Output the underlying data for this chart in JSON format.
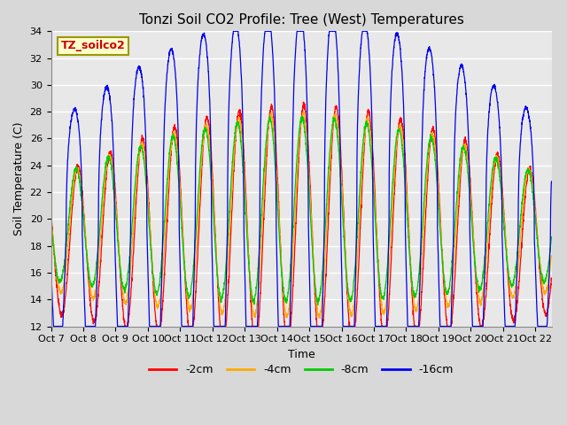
{
  "title": "Tonzi Soil CO2 Profile: Tree (West) Temperatures",
  "ylabel": "Soil Temperature (C)",
  "xlabel": "Time",
  "ylim": [
    12,
    34
  ],
  "yticks": [
    12,
    14,
    16,
    18,
    20,
    22,
    24,
    26,
    28,
    30,
    32,
    34
  ],
  "xtick_labels": [
    "Oct 7",
    "Oct 8",
    "Oct 9",
    "Oct 10",
    "Oct 11",
    "Oct 12",
    "Oct 13",
    "Oct 14",
    "Oct 15",
    "Oct 16",
    "Oct 17",
    "Oct 18",
    "Oct 19",
    "Oct 20",
    "Oct 21",
    "Oct 22"
  ],
  "series_labels": [
    "-2cm",
    "-4cm",
    "-8cm",
    "-16cm"
  ],
  "series_colors": [
    "#ff0000",
    "#ffaa00",
    "#00cc00",
    "#0000ee"
  ],
  "legend_box_text": "TZ_soilco2",
  "legend_box_facecolor": "#ffffcc",
  "legend_box_edgecolor": "#999900",
  "legend_text_color": "#cc0000",
  "fig_facecolor": "#d8d8d8",
  "ax_facecolor": "#e8e8e8",
  "grid_color": "#ffffff",
  "title_fontsize": 11,
  "axis_label_fontsize": 9,
  "tick_fontsize": 8,
  "legend_fontsize": 9,
  "linewidth": 0.9
}
